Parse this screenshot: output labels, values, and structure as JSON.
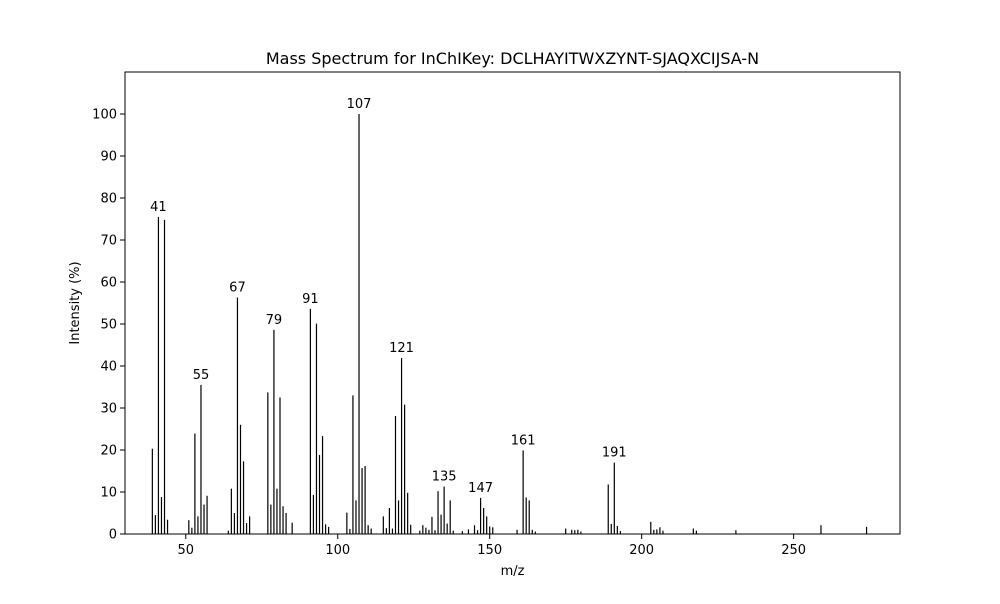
{
  "chart_data": {
    "type": "bar",
    "title": "Mass Spectrum for InChIKey: DCLHAYITWXZYNT-SJAQXCIJSA-N",
    "xlabel": "m/z",
    "ylabel": "Intensity (%)",
    "xlim": [
      30,
      285
    ],
    "ylim": [
      0,
      110
    ],
    "xticks": [
      50,
      100,
      150,
      200,
      250
    ],
    "yticks": [
      0,
      10,
      20,
      30,
      40,
      50,
      60,
      70,
      80,
      90,
      100
    ],
    "grid": false,
    "bar_color": "#000000",
    "peaks": [
      {
        "mz": 39,
        "intensity": 20.3
      },
      {
        "mz": 40,
        "intensity": 4.5
      },
      {
        "mz": 41,
        "intensity": 75.5,
        "label": "41"
      },
      {
        "mz": 42,
        "intensity": 8.8
      },
      {
        "mz": 43,
        "intensity": 74.8
      },
      {
        "mz": 44,
        "intensity": 3.4
      },
      {
        "mz": 51,
        "intensity": 3.3
      },
      {
        "mz": 52,
        "intensity": 1.5
      },
      {
        "mz": 53,
        "intensity": 23.9
      },
      {
        "mz": 54,
        "intensity": 4.2
      },
      {
        "mz": 55,
        "intensity": 35.5,
        "label": "55"
      },
      {
        "mz": 56,
        "intensity": 7.0
      },
      {
        "mz": 57,
        "intensity": 9.1
      },
      {
        "mz": 64,
        "intensity": 0.8
      },
      {
        "mz": 65,
        "intensity": 10.8
      },
      {
        "mz": 66,
        "intensity": 5.0
      },
      {
        "mz": 67,
        "intensity": 56.3,
        "label": "67"
      },
      {
        "mz": 68,
        "intensity": 26.0
      },
      {
        "mz": 69,
        "intensity": 17.3
      },
      {
        "mz": 70,
        "intensity": 2.6
      },
      {
        "mz": 71,
        "intensity": 4.2
      },
      {
        "mz": 77,
        "intensity": 33.7
      },
      {
        "mz": 78,
        "intensity": 7.0
      },
      {
        "mz": 79,
        "intensity": 48.6,
        "label": "79"
      },
      {
        "mz": 80,
        "intensity": 10.8
      },
      {
        "mz": 81,
        "intensity": 32.5
      },
      {
        "mz": 82,
        "intensity": 6.6
      },
      {
        "mz": 83,
        "intensity": 5.0
      },
      {
        "mz": 85,
        "intensity": 2.7
      },
      {
        "mz": 91,
        "intensity": 53.6,
        "label": "91"
      },
      {
        "mz": 92,
        "intensity": 9.3
      },
      {
        "mz": 93,
        "intensity": 50.1
      },
      {
        "mz": 94,
        "intensity": 18.8
      },
      {
        "mz": 95,
        "intensity": 23.3
      },
      {
        "mz": 96,
        "intensity": 2.3
      },
      {
        "mz": 97,
        "intensity": 1.7
      },
      {
        "mz": 103,
        "intensity": 5.1
      },
      {
        "mz": 104,
        "intensity": 1.2
      },
      {
        "mz": 105,
        "intensity": 33.0
      },
      {
        "mz": 106,
        "intensity": 8.0
      },
      {
        "mz": 107,
        "intensity": 100.0,
        "label": "107"
      },
      {
        "mz": 108,
        "intensity": 15.7
      },
      {
        "mz": 109,
        "intensity": 16.2
      },
      {
        "mz": 110,
        "intensity": 2.1
      },
      {
        "mz": 111,
        "intensity": 1.3
      },
      {
        "mz": 115,
        "intensity": 4.2
      },
      {
        "mz": 116,
        "intensity": 1.4
      },
      {
        "mz": 117,
        "intensity": 6.2
      },
      {
        "mz": 118,
        "intensity": 1.3
      },
      {
        "mz": 119,
        "intensity": 28.1
      },
      {
        "mz": 120,
        "intensity": 8.0
      },
      {
        "mz": 121,
        "intensity": 41.9,
        "label": "121"
      },
      {
        "mz": 122,
        "intensity": 30.8
      },
      {
        "mz": 123,
        "intensity": 9.8
      },
      {
        "mz": 124,
        "intensity": 2.2
      },
      {
        "mz": 127,
        "intensity": 0.8
      },
      {
        "mz": 128,
        "intensity": 2.1
      },
      {
        "mz": 129,
        "intensity": 1.5
      },
      {
        "mz": 130,
        "intensity": 1.0
      },
      {
        "mz": 131,
        "intensity": 4.1
      },
      {
        "mz": 132,
        "intensity": 0.9
      },
      {
        "mz": 133,
        "intensity": 10.2
      },
      {
        "mz": 134,
        "intensity": 4.6
      },
      {
        "mz": 135,
        "intensity": 11.3,
        "label": "135"
      },
      {
        "mz": 136,
        "intensity": 2.5
      },
      {
        "mz": 137,
        "intensity": 8.0
      },
      {
        "mz": 138,
        "intensity": 0.8
      },
      {
        "mz": 141,
        "intensity": 0.7
      },
      {
        "mz": 143,
        "intensity": 1.1
      },
      {
        "mz": 145,
        "intensity": 2.1
      },
      {
        "mz": 146,
        "intensity": 0.9
      },
      {
        "mz": 147,
        "intensity": 8.6,
        "label": "147"
      },
      {
        "mz": 148,
        "intensity": 6.2
      },
      {
        "mz": 149,
        "intensity": 4.2
      },
      {
        "mz": 150,
        "intensity": 1.8
      },
      {
        "mz": 151,
        "intensity": 1.6
      },
      {
        "mz": 159,
        "intensity": 1.0
      },
      {
        "mz": 161,
        "intensity": 19.9,
        "label": "161"
      },
      {
        "mz": 162,
        "intensity": 8.7
      },
      {
        "mz": 163,
        "intensity": 8.0
      },
      {
        "mz": 164,
        "intensity": 1.0
      },
      {
        "mz": 165,
        "intensity": 0.6
      },
      {
        "mz": 175,
        "intensity": 1.3
      },
      {
        "mz": 177,
        "intensity": 1.0
      },
      {
        "mz": 178,
        "intensity": 0.9
      },
      {
        "mz": 179,
        "intensity": 1.0
      },
      {
        "mz": 180,
        "intensity": 0.6
      },
      {
        "mz": 189,
        "intensity": 11.8
      },
      {
        "mz": 190,
        "intensity": 2.4
      },
      {
        "mz": 191,
        "intensity": 17.0,
        "label": "191"
      },
      {
        "mz": 192,
        "intensity": 1.9
      },
      {
        "mz": 193,
        "intensity": 0.7
      },
      {
        "mz": 203,
        "intensity": 2.9
      },
      {
        "mz": 204,
        "intensity": 1.0
      },
      {
        "mz": 205,
        "intensity": 1.1
      },
      {
        "mz": 206,
        "intensity": 1.6
      },
      {
        "mz": 207,
        "intensity": 0.8
      },
      {
        "mz": 217,
        "intensity": 1.3
      },
      {
        "mz": 218,
        "intensity": 0.8
      },
      {
        "mz": 231,
        "intensity": 0.9
      },
      {
        "mz": 259,
        "intensity": 2.1
      },
      {
        "mz": 274,
        "intensity": 1.7
      }
    ]
  }
}
